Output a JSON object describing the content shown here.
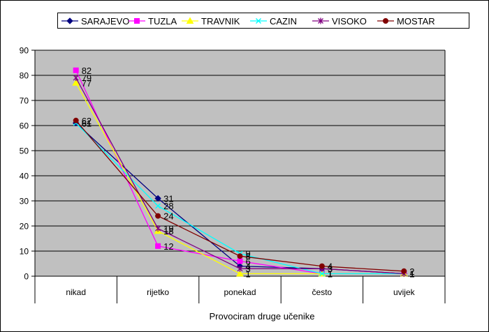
{
  "chart_data": {
    "type": "line",
    "categories": [
      "nikad",
      "rijetko",
      "ponekad",
      "često",
      "uvijek"
    ],
    "xlabel": "Provociram druge učenike",
    "ylabel": "",
    "ylim": [
      0,
      90
    ],
    "yticks": [
      0,
      10,
      20,
      30,
      40,
      50,
      60,
      70,
      80,
      90
    ],
    "grid": true,
    "legend": "top",
    "plot_background": "#c0c0c0",
    "series": [
      {
        "name": "SARAJEVO",
        "color": "#000080",
        "marker": "diamond",
        "values": [
          61,
          31,
          4,
          3,
          1
        ]
      },
      {
        "name": "TUZLA",
        "color": "#ff00ff",
        "marker": "square",
        "values": [
          82,
          12,
          6,
          1,
          1
        ]
      },
      {
        "name": "TRAVNIK",
        "color": "#ffff00",
        "marker": "triangle",
        "values": [
          77,
          18,
          1,
          1,
          1
        ]
      },
      {
        "name": "CAZIN",
        "color": "#00ffff",
        "marker": "x",
        "values": [
          61,
          28,
          9,
          1,
          1
        ]
      },
      {
        "name": "VISOKO",
        "color": "#800080",
        "marker": "star",
        "values": [
          79,
          19,
          3,
          3,
          1
        ]
      },
      {
        "name": "MOSTAR",
        "color": "#800000",
        "marker": "circle",
        "values": [
          62,
          24,
          8,
          4,
          2
        ]
      }
    ]
  }
}
